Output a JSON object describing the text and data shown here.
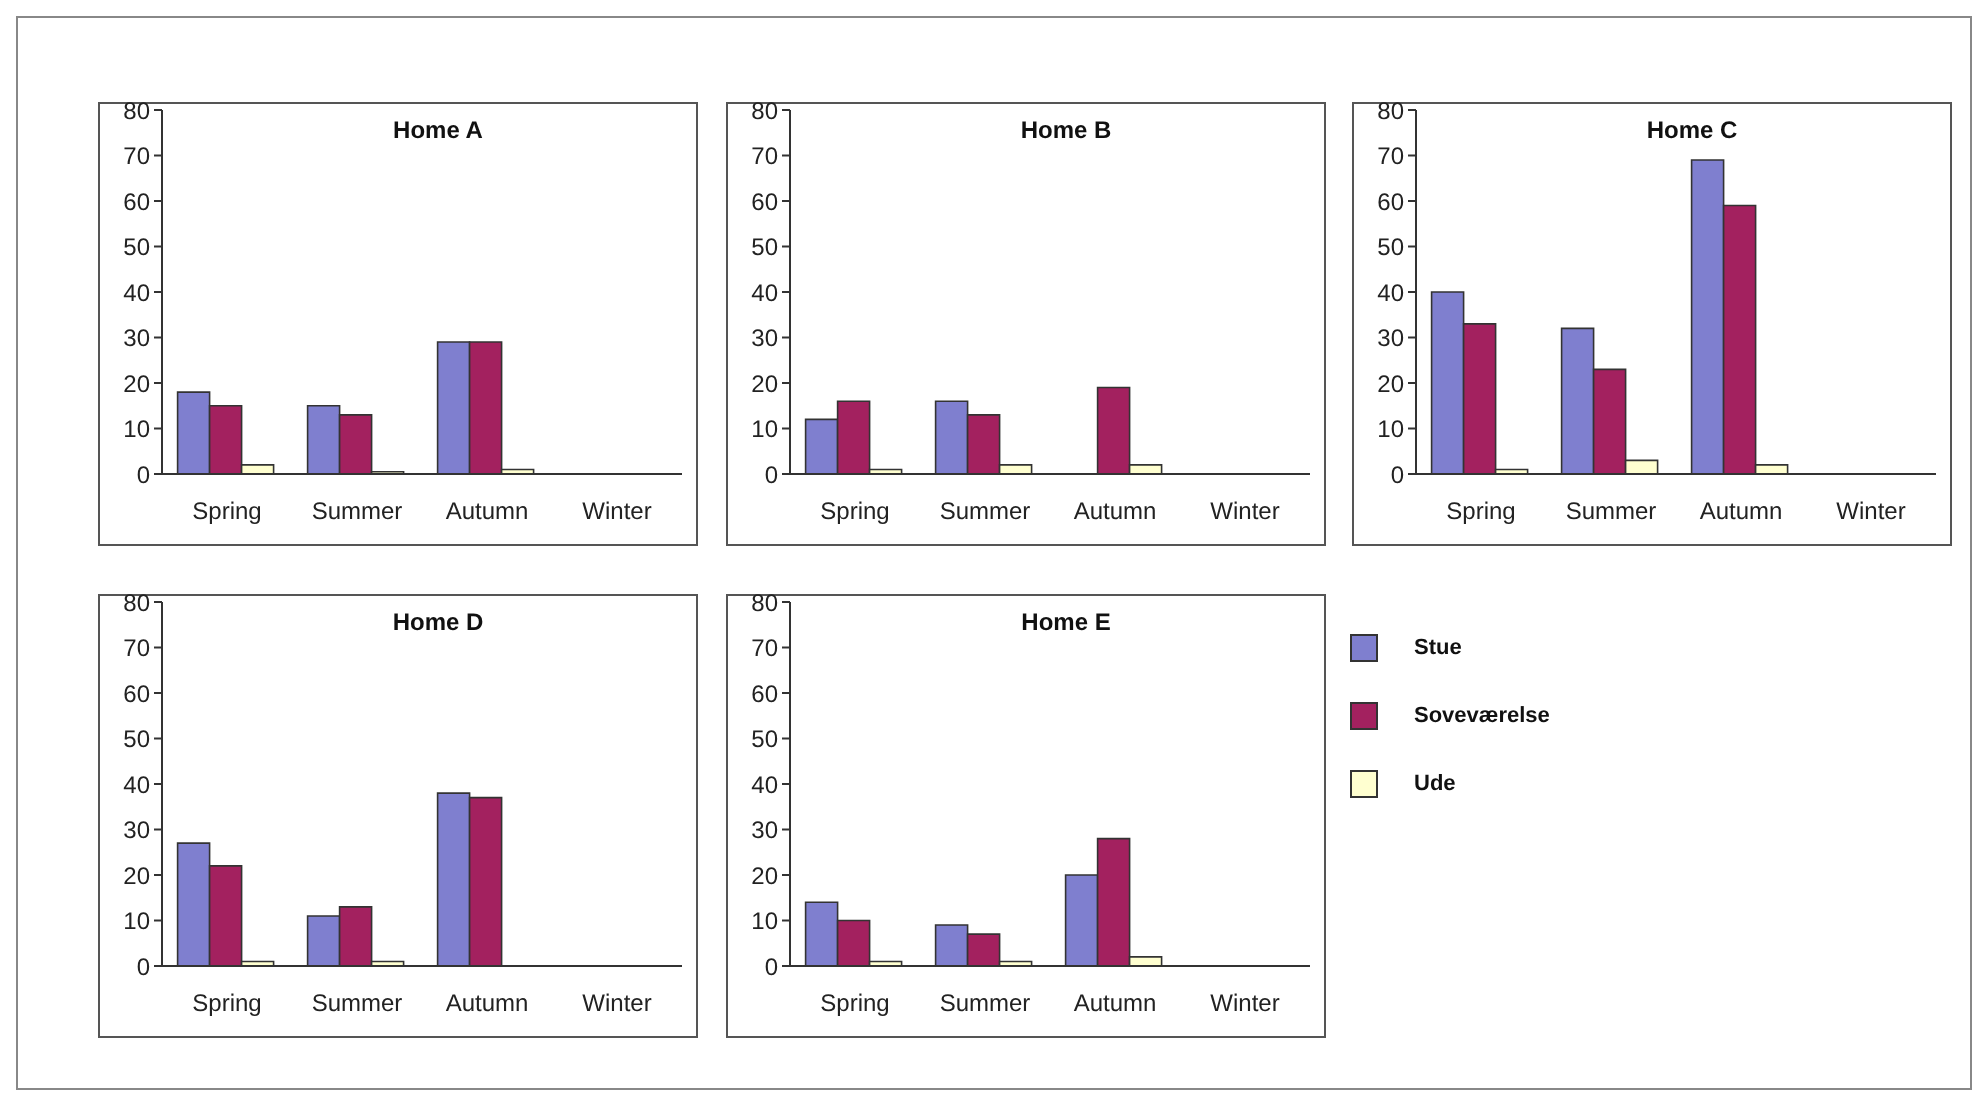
{
  "chart_data": [
    {
      "type": "bar",
      "title": "Home A",
      "categories": [
        "Spring",
        "Summer",
        "Autumn",
        "Winter"
      ],
      "ylim": [
        0,
        80
      ],
      "yticks": [
        0,
        10,
        20,
        30,
        40,
        50,
        60,
        70,
        80
      ],
      "grid": false,
      "series": [
        {
          "color": "#7f7fcf",
          "values": [
            18,
            15,
            29,
            null
          ]
        },
        {
          "color": "#a3215f",
          "values": [
            15,
            13,
            29,
            null
          ]
        },
        {
          "color": "#ffffd0",
          "values": [
            2,
            0.5,
            1,
            null
          ]
        }
      ]
    },
    {
      "type": "bar",
      "title": "Home B",
      "categories": [
        "Spring",
        "Summer",
        "Autumn",
        "Winter"
      ],
      "ylim": [
        0,
        80
      ],
      "yticks": [
        0,
        10,
        20,
        30,
        40,
        50,
        60,
        70,
        80
      ],
      "grid": false,
      "series": [
        {
          "color": "#7f7fcf",
          "values": [
            12,
            16,
            null,
            null
          ]
        },
        {
          "color": "#a3215f",
          "values": [
            16,
            13,
            19,
            null
          ]
        },
        {
          "color": "#ffffd0",
          "values": [
            1,
            2,
            2,
            null
          ]
        }
      ]
    },
    {
      "type": "bar",
      "title": "Home C",
      "categories": [
        "Spring",
        "Summer",
        "Autumn",
        "Winter"
      ],
      "ylim": [
        0,
        80
      ],
      "yticks": [
        0,
        10,
        20,
        30,
        40,
        50,
        60,
        70,
        80
      ],
      "grid": false,
      "series": [
        {
          "color": "#7f7fcf",
          "values": [
            40,
            32,
            69,
            null
          ]
        },
        {
          "color": "#a3215f",
          "values": [
            33,
            23,
            59,
            null
          ]
        },
        {
          "color": "#ffffd0",
          "values": [
            1,
            3,
            2,
            null
          ]
        }
      ]
    },
    {
      "type": "bar",
      "title": "Home D",
      "categories": [
        "Spring",
        "Summer",
        "Autumn",
        "Winter"
      ],
      "ylim": [
        0,
        80
      ],
      "yticks": [
        0,
        10,
        20,
        30,
        40,
        50,
        60,
        70,
        80
      ],
      "grid": false,
      "series": [
        {
          "color": "#7f7fcf",
          "values": [
            27,
            11,
            38,
            null
          ]
        },
        {
          "color": "#a3215f",
          "values": [
            22,
            13,
            37,
            null
          ]
        },
        {
          "color": "#ffffd0",
          "values": [
            1,
            1,
            null,
            null
          ]
        }
      ]
    },
    {
      "type": "bar",
      "title": "Home E",
      "categories": [
        "Spring",
        "Summer",
        "Autumn",
        "Winter"
      ],
      "ylim": [
        0,
        80
      ],
      "yticks": [
        0,
        10,
        20,
        30,
        40,
        50,
        60,
        70,
        80
      ],
      "grid": false,
      "legend": "right",
      "series": [
        {
          "name": "Stue",
          "color": "#7f7fcf",
          "values": [
            14,
            9,
            20,
            null
          ]
        },
        {
          "name": "Soveværelse",
          "color": "#a3215f",
          "values": [
            10,
            7,
            28,
            null
          ]
        },
        {
          "name": "Ude",
          "color": "#ffffd0",
          "values": [
            1,
            1,
            2,
            null
          ]
        }
      ]
    }
  ]
}
